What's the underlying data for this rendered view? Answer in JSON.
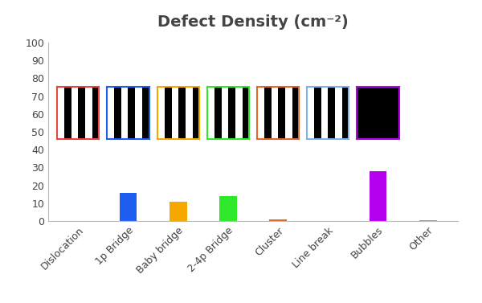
{
  "chart_data": {
    "type": "bar",
    "title": "Defect Density (cm⁻²)",
    "categories": [
      "Dislocation",
      "1p Bridge",
      "Baby bridge",
      "2-4p Bridge",
      "Cluster",
      "Line break",
      "Bubbles",
      "Other"
    ],
    "values": [
      0.3,
      16,
      11,
      14,
      1.2,
      0.2,
      28,
      0.6
    ],
    "colors": [
      "#e8453c",
      "#1f5cf0",
      "#f5a800",
      "#2ee82a",
      "#e0682a",
      "#7fb0e8",
      "#b400ee",
      "#999999"
    ],
    "ylim": [
      0,
      100
    ],
    "yticks": [
      0,
      10,
      20,
      30,
      40,
      50,
      60,
      70,
      80,
      90,
      100
    ],
    "grid": false
  }
}
